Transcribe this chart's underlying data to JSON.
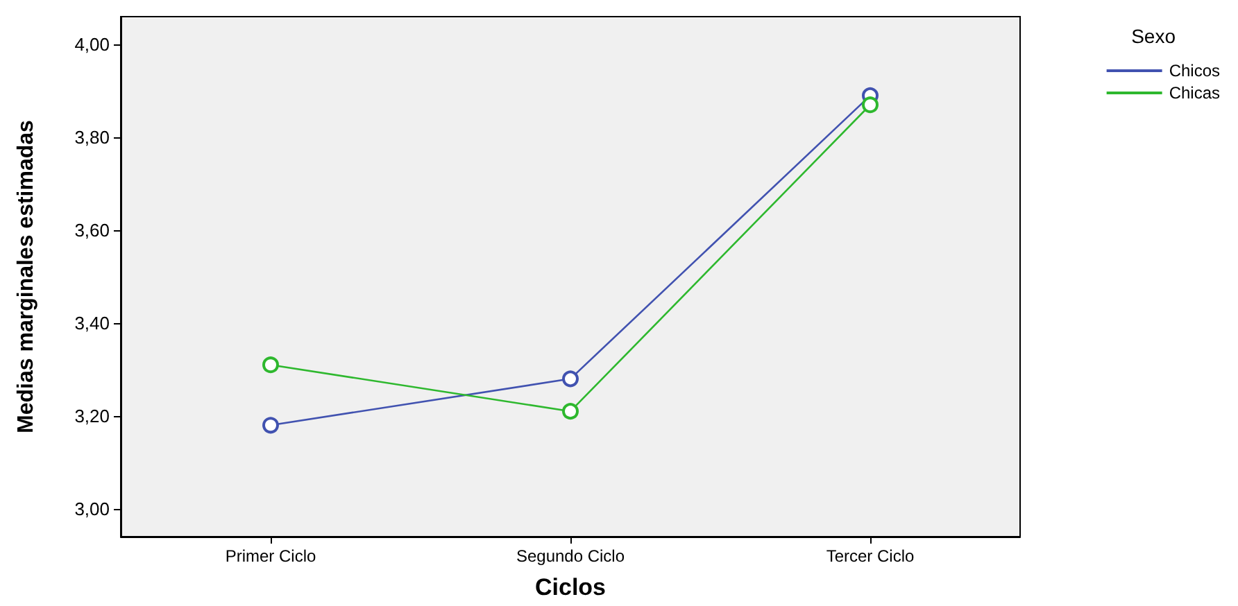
{
  "chart_data": {
    "type": "line",
    "xlabel": "Ciclos",
    "ylabel": "Medias marginales estimadas",
    "legend_title": "Sexo",
    "categories": [
      "Primer Ciclo",
      "Segundo Ciclo",
      "Tercer Ciclo"
    ],
    "series": [
      {
        "name": "Chicos",
        "color": "#4152b0",
        "values": [
          3.18,
          3.28,
          3.89
        ]
      },
      {
        "name": "Chicas",
        "color": "#2eb82e",
        "values": [
          3.31,
          3.21,
          3.87
        ]
      }
    ],
    "ylim": [
      2.94,
      4.06
    ],
    "yticks": [
      {
        "value": 3.0,
        "label": "3,00"
      },
      {
        "value": 3.2,
        "label": "3,20"
      },
      {
        "value": 3.4,
        "label": "3,40"
      },
      {
        "value": 3.6,
        "label": "3,60"
      },
      {
        "value": 3.8,
        "label": "3,80"
      },
      {
        "value": 4.0,
        "label": "4,00"
      }
    ],
    "grid": false,
    "legend": "top right",
    "marker": "circle",
    "line_style": "solid"
  }
}
